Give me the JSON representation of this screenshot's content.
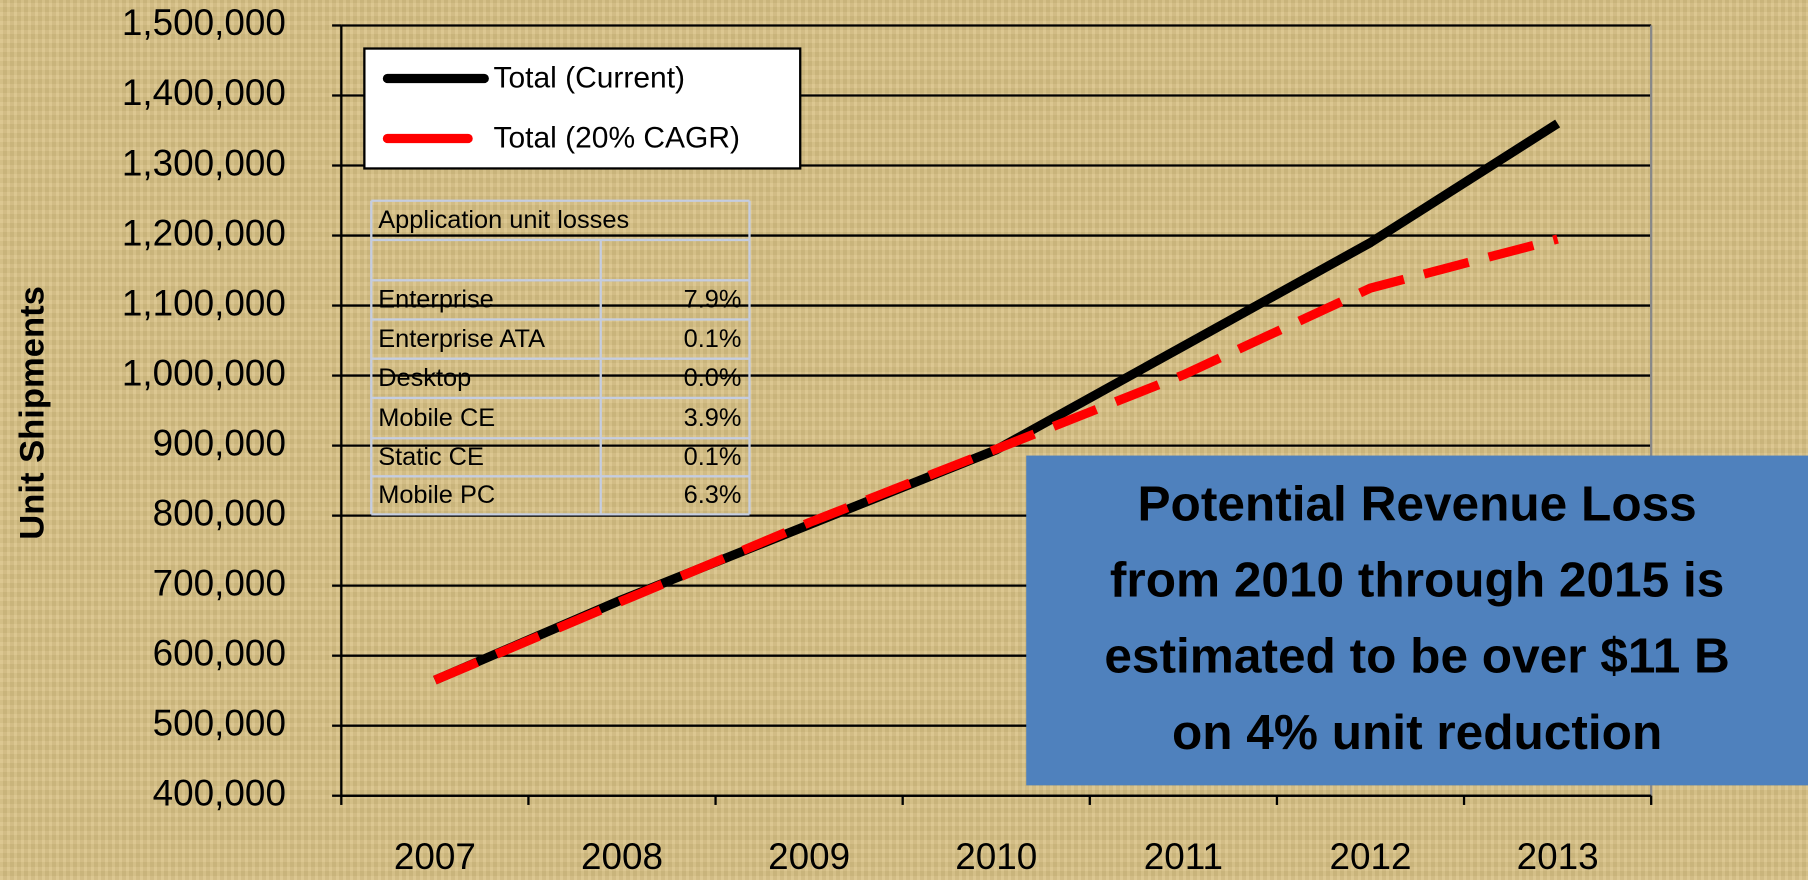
{
  "chart_data": {
    "type": "line",
    "y_label": "Unit Shipments",
    "categories": [
      "2007",
      "2008",
      "2009",
      "2010",
      "2011",
      "2012",
      "2013"
    ],
    "series": [
      {
        "name": "Total (Current)",
        "color": "#000000",
        "dashed": false,
        "values": [
          565000,
          680000,
          787000,
          894000,
          1042000,
          1190000,
          1360000
        ]
      },
      {
        "name": "Total (20% CAGR)",
        "color": "#ff0000",
        "dashed": true,
        "values": [
          565000,
          678000,
          790000,
          895000,
          1001000,
          1125000,
          1195000
        ]
      }
    ],
    "ylim": [
      400000,
      1500000
    ],
    "yticks": [
      {
        "value": 400000,
        "label": "400,000"
      },
      {
        "value": 500000,
        "label": "500,000"
      },
      {
        "value": 600000,
        "label": "600,000"
      },
      {
        "value": 700000,
        "label": "700,000"
      },
      {
        "value": 800000,
        "label": "800,000"
      },
      {
        "value": 900000,
        "label": "900,000"
      },
      {
        "value": 1000000,
        "label": "1,000,000"
      },
      {
        "value": 1100000,
        "label": "1,100,000"
      },
      {
        "value": 1200000,
        "label": "1,200,000"
      },
      {
        "value": 1300000,
        "label": "1,300,000"
      },
      {
        "value": 1400000,
        "label": "1,400,000"
      },
      {
        "value": 1500000,
        "label": "1,500,000"
      }
    ],
    "grid": true,
    "legend": "top-left",
    "table": {
      "title": "Application unit losses",
      "rows": [
        [
          "Enterprise",
          "7.9%"
        ],
        [
          "Enterprise ATA",
          "0.1%"
        ],
        [
          "Desktop",
          "0.0%"
        ],
        [
          "Mobile CE",
          "3.9%"
        ],
        [
          "Static CE",
          "0.1%"
        ],
        [
          "Mobile PC",
          "6.3%"
        ]
      ]
    },
    "annotation": [
      "Potential Revenue Loss",
      "from 2010 through 2015 is",
      "estimated to be over $11 B",
      "on 4% unit reduction"
    ]
  }
}
